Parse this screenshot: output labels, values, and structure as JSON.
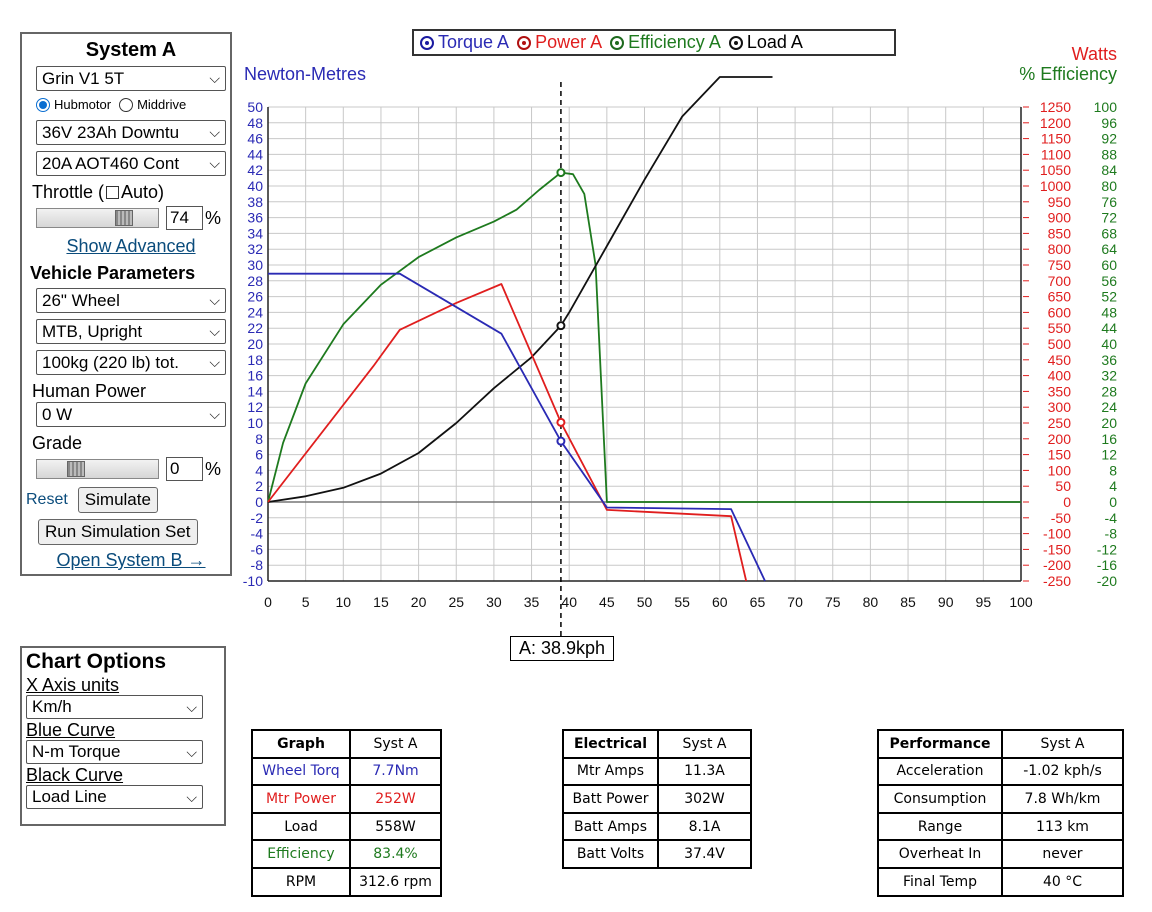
{
  "system_a": {
    "title": "System A",
    "motor": "Grin V1 5T",
    "mount_options": [
      "Hubmotor",
      "Middrive"
    ],
    "battery": "36V 23Ah Downtu",
    "controller": "20A AOT460 Cont",
    "throttle_label": "Throttle (",
    "auto_label": "Auto)",
    "throttle_value": "74",
    "throttle_fraction": 0.74,
    "percent_sign": "%",
    "show_advanced": "Show Advanced",
    "vehicle_params_title": "Vehicle Parameters",
    "wheel": "26\"  Wheel",
    "position": "MTB, Upright",
    "weight": "100kg (220 lb) tot.",
    "human_power_label": "Human Power",
    "human_power": "0 W",
    "grade_label": "Grade",
    "grade_value": "0",
    "reset": "Reset",
    "simulate": "Simulate",
    "run_set": "Run Simulation Set",
    "open_b": "Open System B →"
  },
  "legend": [
    "Torque A",
    "Power A",
    "Efficiency A",
    "Load A"
  ],
  "chart_text": {
    "left_unit": "Newton-Metres",
    "right_unit_1": "Watts",
    "right_unit_2": "% Efficiency",
    "tooltip": "A: 38.9kph"
  },
  "colors": {
    "torque": "#2a2ab4",
    "power": "#e01e1e",
    "efficiency": "#1e7a1e",
    "load": "#111111",
    "grid": "#c8c8c8"
  },
  "chart_data": {
    "type": "line",
    "x_range": [
      0,
      100
    ],
    "x_ticks": [
      0,
      5,
      10,
      15,
      20,
      25,
      30,
      35,
      40,
      45,
      50,
      55,
      60,
      65,
      70,
      75,
      80,
      85,
      90,
      95,
      100
    ],
    "y_left_range": [
      -10,
      50
    ],
    "y_left_ticks": [
      50,
      48,
      46,
      44,
      42,
      40,
      38,
      36,
      34,
      32,
      30,
      28,
      26,
      24,
      22,
      20,
      18,
      16,
      14,
      12,
      10,
      8,
      6,
      4,
      2,
      0,
      -2,
      -4,
      -6,
      -8,
      -10
    ],
    "y_watts_ticks": [
      1250,
      1200,
      1150,
      1100,
      1050,
      1000,
      950,
      900,
      850,
      800,
      750,
      700,
      650,
      600,
      550,
      500,
      450,
      400,
      350,
      300,
      250,
      200,
      150,
      100,
      50,
      0,
      -50,
      -100,
      -150,
      -200,
      -250
    ],
    "y_eff_ticks": [
      100,
      96,
      92,
      88,
      84,
      80,
      76,
      72,
      68,
      64,
      60,
      56,
      52,
      48,
      44,
      40,
      36,
      32,
      28,
      24,
      20,
      16,
      12,
      8,
      4,
      0,
      -4,
      -8,
      -12,
      -16,
      -20
    ],
    "cursor_x": 38.9,
    "series": [
      {
        "name": "Torque A",
        "axis": "Nm",
        "x": [
          0,
          17.5,
          31,
          38.9,
          45,
          61.5,
          66
        ],
        "y": [
          28.9,
          28.9,
          21.3,
          7.7,
          -0.7,
          -0.9,
          -10
        ]
      },
      {
        "name": "Power A",
        "axis": "W",
        "x": [
          0,
          14,
          17.5,
          25,
          31,
          38.9,
          45,
          61.5,
          63.5
        ],
        "y": [
          0,
          430,
          545,
          630,
          690,
          252,
          -25,
          -45,
          -250
        ]
      },
      {
        "name": "Efficiency A",
        "axis": "%",
        "x": [
          0,
          2,
          5,
          10,
          15,
          20,
          25,
          30,
          33,
          36,
          38.9,
          40.5,
          42,
          43.5,
          44.5,
          45,
          100
        ],
        "y": [
          0,
          15,
          30,
          45,
          55,
          62,
          67,
          71,
          74,
          79,
          83.4,
          83,
          78,
          60,
          20,
          0,
          0
        ]
      },
      {
        "name": "Load A",
        "axis": "W",
        "x": [
          0,
          5,
          10,
          15,
          20,
          25,
          30,
          35,
          38.9,
          40,
          45,
          50,
          55,
          60,
          65,
          67
        ],
        "y": [
          0,
          18,
          45,
          90,
          155,
          250,
          360,
          458,
          558,
          600,
          810,
          1020,
          1220,
          1410,
          1590,
          1700
        ]
      }
    ]
  },
  "chart_options": {
    "title": "Chart Options",
    "x_axis_label": "X Axis units",
    "x_axis_value": "Km/h",
    "blue_label": "Blue Curve",
    "blue_value": "N-m Torque",
    "black_label": "Black Curve",
    "black_value": "Load Line"
  },
  "table_graph": {
    "header": [
      "Graph",
      "Syst A"
    ],
    "rows": [
      [
        "Wheel Torq",
        "7.7Nm"
      ],
      [
        "Mtr Power",
        "252W"
      ],
      [
        "Load",
        "558W"
      ],
      [
        "Efficiency",
        "83.4%"
      ],
      [
        "RPM",
        "312.6 rpm"
      ]
    ]
  },
  "table_electrical": {
    "header": [
      "Electrical",
      "Syst A"
    ],
    "rows": [
      [
        "Mtr Amps",
        "11.3A"
      ],
      [
        "Batt Power",
        "302W"
      ],
      [
        "Batt Amps",
        "8.1A"
      ],
      [
        "Batt Volts",
        "37.4V"
      ]
    ]
  },
  "table_performance": {
    "header": [
      "Performance",
      "Syst A"
    ],
    "rows": [
      [
        "Acceleration",
        "-1.02 kph/s"
      ],
      [
        "Consumption",
        "7.8 Wh/km"
      ],
      [
        "Range",
        "113 km"
      ],
      [
        "Overheat In",
        "never"
      ],
      [
        "Final Temp",
        "40 °C"
      ]
    ]
  }
}
